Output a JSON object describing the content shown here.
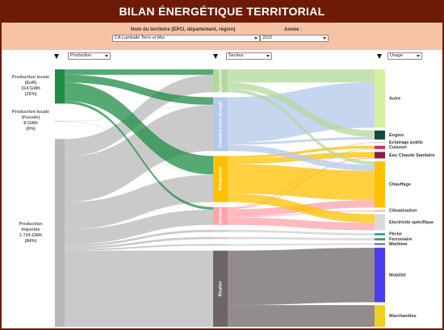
{
  "header": {
    "title": "BILAN ÉNERGÉTIQUE TERRITORIAL"
  },
  "filters": {
    "territory_label": "Nom du territoire (EPCI, département, région)",
    "territory": "CA Lamballe Terre et Mer",
    "year_label": "Année :",
    "year": "2022"
  },
  "column_selects": [
    "Production",
    "Secteur",
    "Usage"
  ],
  "chart_data": {
    "type": "sankey",
    "sources": [
      {
        "name": "Production locale (EnR)",
        "value_label": "314 GWh",
        "share_label": "(15%)",
        "color": "#1e8c44"
      },
      {
        "name": "Production locale (Fossile)",
        "value_label": "8 GWh",
        "share_label": "(0%)",
        "color": "#c9d0e2"
      },
      {
        "name": "Production importée",
        "value_label": "1 724 GWh",
        "share_label": "(84%)",
        "color": "#b8b8b8"
      }
    ],
    "sectors": [
      {
        "name": "Agriculture",
        "color": "#b3d89a"
      },
      {
        "name": "Industrie hors énergie",
        "color": "#b4c8ea"
      },
      {
        "name": "Résidentiel",
        "color": "#ffc000"
      },
      {
        "name": "Tertiaire",
        "color": "#ffa3a8"
      },
      {
        "name": null,
        "color": "#cfcfcf"
      },
      {
        "name": null,
        "color": "#cfcfcf"
      },
      {
        "name": null,
        "color": "#cfcfcf"
      },
      {
        "name": "Routier",
        "color": "#6e6666"
      }
    ],
    "uses": [
      {
        "name": "Autre",
        "color": "#d4f0a0"
      },
      {
        "name": "Engins",
        "color": "#0f4a3c"
      },
      {
        "name": "Eclairage public",
        "color": "#b5b5b5"
      },
      {
        "name": "Cuisson",
        "color": "#c0306a"
      },
      {
        "name": "Eau Chaude Sanitaire",
        "color": "#8c1e40"
      },
      {
        "name": "Chauffage",
        "color": "#ffc000"
      },
      {
        "name": "Climatisation",
        "color": "#ff7a3a"
      },
      {
        "name": "Electricité spécifique",
        "color": "#dadada"
      },
      {
        "name": "Pêche",
        "color": "#20a0a8"
      },
      {
        "name": "Ferroviaire",
        "color": "#3a9a5a"
      },
      {
        "name": "Maritime",
        "color": "#4a66b0"
      },
      {
        "name": "Mobilité",
        "color": "#4a3cf0"
      },
      {
        "name": "Marchandise",
        "color": "#f0d020"
      }
    ],
    "flows_in": [
      {
        "source": 0,
        "target": 0,
        "value": 50
      },
      {
        "source": 2,
        "target": 0,
        "value": 160
      },
      {
        "source": 0,
        "target": 1,
        "value": 70
      },
      {
        "source": 1,
        "target": 1,
        "value": 4
      },
      {
        "source": 2,
        "target": 1,
        "value": 420
      },
      {
        "source": 0,
        "target": 2,
        "value": 170
      },
      {
        "source": 1,
        "target": 2,
        "value": 4
      },
      {
        "source": 2,
        "target": 2,
        "value": 250
      },
      {
        "source": 0,
        "target": 3,
        "value": 24
      },
      {
        "source": 2,
        "target": 3,
        "value": 140
      },
      {
        "source": 2,
        "target": 4,
        "value": 20
      },
      {
        "source": 2,
        "target": 5,
        "value": 20
      },
      {
        "source": 2,
        "target": 6,
        "value": 15
      },
      {
        "source": 2,
        "target": 7,
        "value": 699
      }
    ],
    "flows_out": [
      {
        "source": 0,
        "target": 0,
        "value": 120
      },
      {
        "source": 1,
        "target": 0,
        "value": 415
      },
      {
        "source": 0,
        "target": 1,
        "value": 60
      },
      {
        "source": 1,
        "target": 1,
        "value": 22
      },
      {
        "source": 3,
        "target": 2,
        "value": 5
      },
      {
        "source": 2,
        "target": 3,
        "value": 25
      },
      {
        "source": 3,
        "target": 3,
        "value": 5
      },
      {
        "source": 2,
        "target": 4,
        "value": 50
      },
      {
        "source": 3,
        "target": 4,
        "value": 10
      },
      {
        "source": 0,
        "target": 5,
        "value": 30
      },
      {
        "source": 1,
        "target": 5,
        "value": 57
      },
      {
        "source": 2,
        "target": 5,
        "value": 270
      },
      {
        "source": 3,
        "target": 5,
        "value": 67
      },
      {
        "source": 3,
        "target": 6,
        "value": 8
      },
      {
        "source": 2,
        "target": 7,
        "value": 79
      },
      {
        "source": 3,
        "target": 7,
        "value": 69
      },
      {
        "source": 4,
        "target": 8,
        "value": 20
      },
      {
        "source": 5,
        "target": 9,
        "value": 20
      },
      {
        "source": 6,
        "target": 10,
        "value": 15
      },
      {
        "source": 7,
        "target": 11,
        "value": 500
      },
      {
        "source": 7,
        "target": 12,
        "value": 199
      }
    ]
  }
}
